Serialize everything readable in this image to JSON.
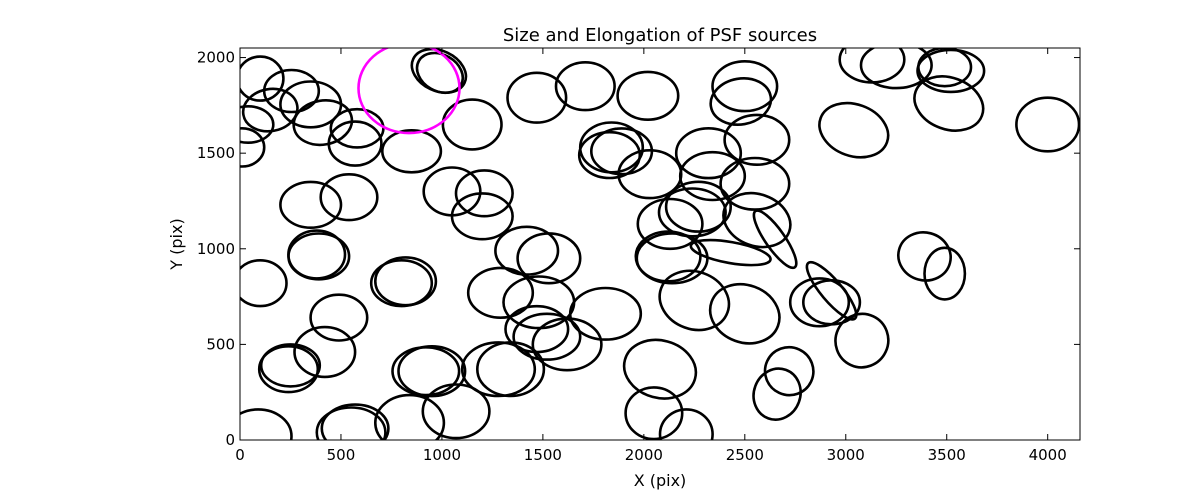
{
  "chart_data": {
    "type": "scatter",
    "title": "Size and Elongation of PSF sources",
    "xlabel": "X (pix)",
    "ylabel": "Y (pix)",
    "xlim": [
      0,
      4160
    ],
    "ylim": [
      0,
      2050
    ],
    "xticks": [
      0,
      500,
      1000,
      1500,
      2000,
      2500,
      3000,
      3500,
      4000
    ],
    "yticks": [
      0,
      500,
      1000,
      1500,
      2000
    ],
    "grid": false,
    "shape_units": "ellipse centers in pix, full width/height in pix, angle in degrees",
    "highlight": {
      "color": "#ff00ff",
      "center": [
        837,
        1840
      ],
      "width": 500,
      "height": 470,
      "angle": 0
    },
    "colors": {
      "sources": "#000000",
      "highlight": "#ff00ff"
    },
    "sources": [
      [
        100,
        1890,
        230,
        230,
        0
      ],
      [
        255,
        1825,
        270,
        220,
        0
      ],
      [
        350,
        1755,
        300,
        240,
        0
      ],
      [
        150,
        1725,
        270,
        220,
        10
      ],
      [
        40,
        1650,
        250,
        190,
        0
      ],
      [
        410,
        1660,
        290,
        230,
        10
      ],
      [
        580,
        1630,
        260,
        200,
        0
      ],
      [
        10,
        1530,
        220,
        200,
        0
      ],
      [
        570,
        1550,
        260,
        230,
        0
      ],
      [
        850,
        1510,
        290,
        220,
        0
      ],
      [
        1150,
        1650,
        290,
        260,
        0
      ],
      [
        985,
        1930,
        280,
        210,
        -25
      ],
      [
        990,
        1920,
        240,
        190,
        -30
      ],
      [
        1470,
        1790,
        290,
        260,
        0
      ],
      [
        1710,
        1850,
        290,
        250,
        0
      ],
      [
        2020,
        1800,
        300,
        250,
        0
      ],
      [
        2500,
        1850,
        320,
        260,
        0
      ],
      [
        2480,
        1770,
        300,
        240,
        10
      ],
      [
        2560,
        1570,
        320,
        260,
        0
      ],
      [
        3040,
        1620,
        350,
        270,
        -20
      ],
      [
        3250,
        1960,
        350,
        240,
        0
      ],
      [
        3130,
        1990,
        320,
        240,
        0
      ],
      [
        3520,
        1930,
        330,
        220,
        0
      ],
      [
        3490,
        1950,
        260,
        200,
        0
      ],
      [
        3510,
        1760,
        350,
        270,
        -20
      ],
      [
        4000,
        1650,
        310,
        280,
        0
      ],
      [
        1840,
        1530,
        310,
        260,
        0
      ],
      [
        1830,
        1490,
        300,
        240,
        0
      ],
      [
        1890,
        1510,
        300,
        240,
        0
      ],
      [
        2030,
        1390,
        310,
        250,
        0
      ],
      [
        2320,
        1500,
        320,
        260,
        0
      ],
      [
        2340,
        1380,
        320,
        250,
        0
      ],
      [
        2550,
        1340,
        340,
        270,
        0
      ],
      [
        2560,
        1150,
        340,
        270,
        -20
      ],
      [
        2650,
        1050,
        340,
        100,
        -55
      ],
      [
        2430,
        980,
        400,
        110,
        -10
      ],
      [
        2270,
        1220,
        320,
        260,
        0
      ],
      [
        2240,
        1190,
        330,
        250,
        0
      ],
      [
        2130,
        1130,
        320,
        260,
        0
      ],
      [
        2120,
        960,
        320,
        260,
        0
      ],
      [
        2140,
        950,
        350,
        260,
        0
      ],
      [
        2250,
        730,
        350,
        300,
        -20
      ],
      [
        2500,
        660,
        350,
        300,
        -20
      ],
      [
        2870,
        720,
        290,
        250,
        0
      ],
      [
        2930,
        720,
        280,
        230,
        0
      ],
      [
        2930,
        780,
        360,
        110,
        -50
      ],
      [
        3080,
        520,
        260,
        280,
        -25
      ],
      [
        3390,
        960,
        260,
        250,
        -15
      ],
      [
        3490,
        870,
        200,
        270,
        0
      ],
      [
        2720,
        360,
        240,
        250,
        -25
      ],
      [
        2660,
        240,
        230,
        270,
        -20
      ],
      [
        2080,
        370,
        360,
        300,
        -15
      ],
      [
        2050,
        140,
        280,
        270,
        0
      ],
      [
        2210,
        30,
        260,
        260,
        0
      ],
      [
        1810,
        660,
        350,
        270,
        0
      ],
      [
        1480,
        720,
        350,
        270,
        0
      ],
      [
        1520,
        540,
        330,
        240,
        0
      ],
      [
        1470,
        580,
        310,
        240,
        0
      ],
      [
        1620,
        500,
        340,
        270,
        0
      ],
      [
        1290,
        770,
        320,
        260,
        0
      ],
      [
        1420,
        990,
        310,
        250,
        0
      ],
      [
        1530,
        950,
        310,
        260,
        0
      ],
      [
        1050,
        1300,
        280,
        250,
        0
      ],
      [
        1210,
        1290,
        280,
        240,
        0
      ],
      [
        1200,
        1170,
        300,
        240,
        0
      ],
      [
        820,
        830,
        300,
        250,
        0
      ],
      [
        800,
        820,
        300,
        240,
        0
      ],
      [
        350,
        1230,
        300,
        240,
        0
      ],
      [
        540,
        1270,
        280,
        240,
        0
      ],
      [
        380,
        970,
        280,
        250,
        0
      ],
      [
        390,
        960,
        300,
        240,
        0
      ],
      [
        100,
        820,
        260,
        240,
        0
      ],
      [
        490,
        640,
        280,
        240,
        0
      ],
      [
        420,
        460,
        300,
        260,
        0
      ],
      [
        240,
        370,
        290,
        240,
        0
      ],
      [
        250,
        390,
        290,
        220,
        0
      ],
      [
        950,
        360,
        330,
        260,
        0
      ],
      [
        920,
        360,
        330,
        250,
        0
      ],
      [
        1070,
        150,
        330,
        280,
        0
      ],
      [
        840,
        90,
        340,
        290,
        0
      ],
      [
        570,
        60,
        330,
        250,
        0
      ],
      [
        550,
        40,
        340,
        260,
        0
      ],
      [
        90,
        20,
        330,
        280,
        0
      ],
      [
        1340,
        370,
        330,
        280,
        0
      ],
      [
        1280,
        370,
        360,
        280,
        0
      ]
    ]
  }
}
